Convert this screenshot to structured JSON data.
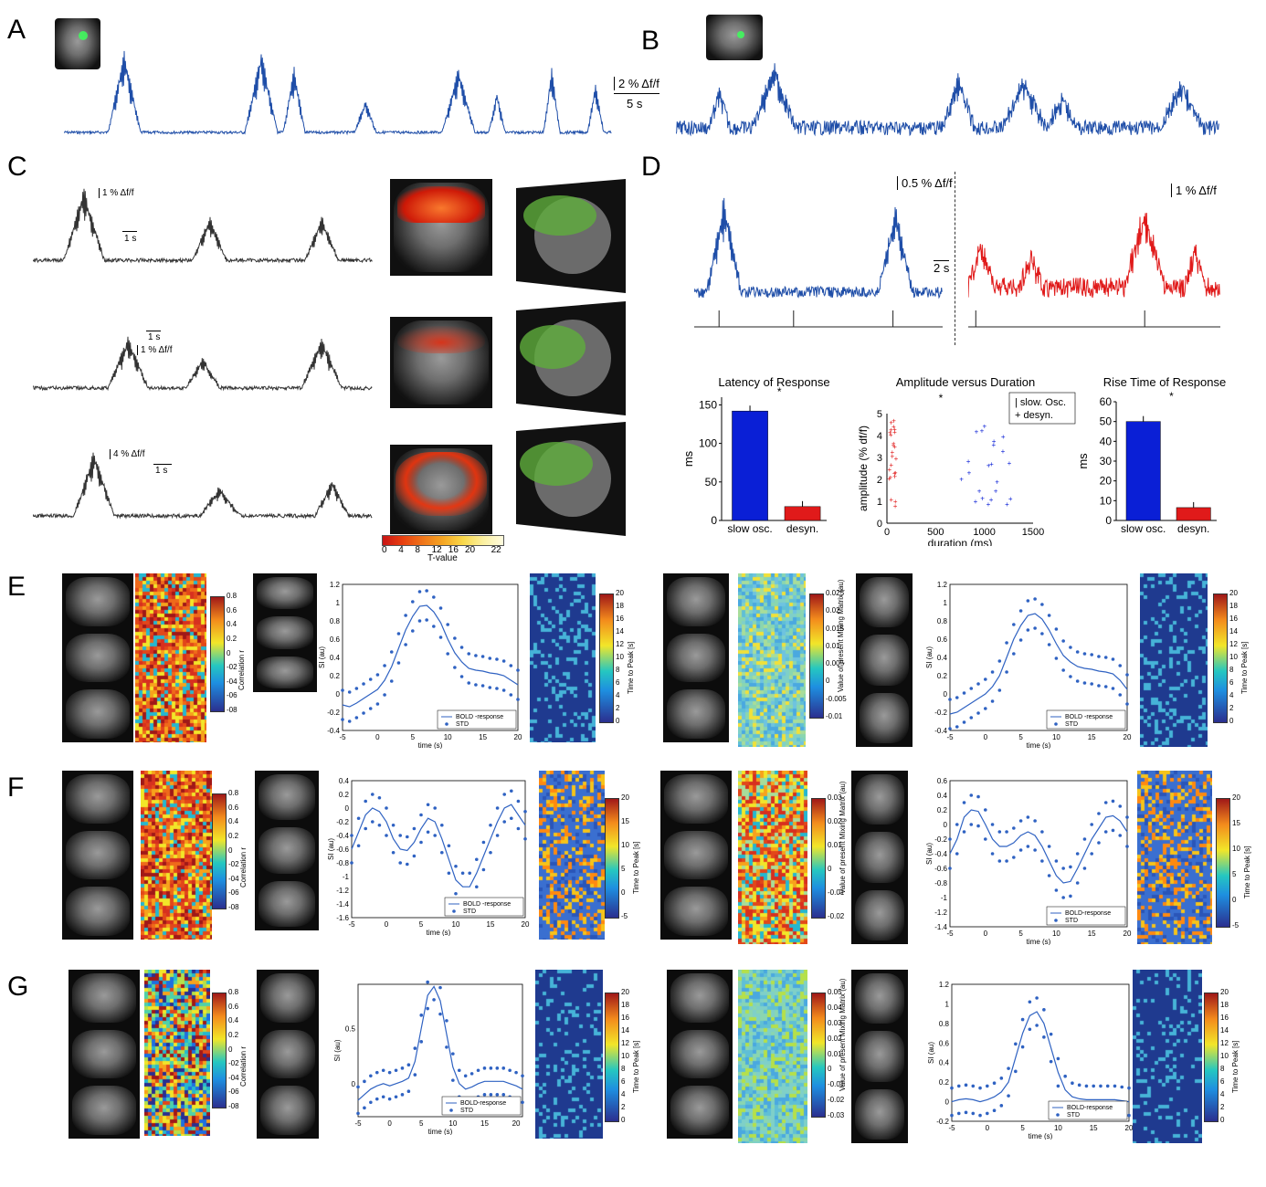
{
  "panels": {
    "A": "A",
    "B": "B",
    "C": "C",
    "D": "D",
    "E": "E",
    "F": "F",
    "G": "G"
  },
  "scalebars": {
    "a_amp": "2 % Δf/f",
    "a_time": "5 s",
    "c1_amp": "1 % Δf/f",
    "c1_time": "1 s",
    "c2_amp": "1 % Δf/f",
    "c2_time": "1 s",
    "c3_amp": "4 % Δf/f",
    "c3_time": "1 s",
    "d_amp1": "0.5 % Δf/f",
    "d_amp2": "1 % Δf/f",
    "d_time": "2 s"
  },
  "tmap": {
    "ticks": [
      "0",
      "4",
      "8",
      "12",
      "16",
      "20",
      "22"
    ],
    "label": "T-value"
  },
  "colors": {
    "blue": "#1f4ea8",
    "red": "#e01a1a",
    "black": "#333333",
    "bar_blue": "#0a1fd6"
  },
  "chart_data": [
    {
      "type": "bar",
      "title": "Latency of Response",
      "ylabel": "ms",
      "categories": [
        "slow osc.",
        "desyn."
      ],
      "values": [
        142,
        18
      ],
      "ylim": [
        0,
        160
      ],
      "yticks": [
        "0",
        "50",
        "100",
        "150"
      ],
      "sig": "*"
    },
    {
      "type": "scatter",
      "title": "Amplitude versus Duration",
      "xlabel": "duration (ms)",
      "ylabel": "amplitude (% df/f)",
      "xlim": [
        0,
        1500
      ],
      "ylim": [
        0,
        5
      ],
      "xticks": [
        "0",
        "500",
        "1000",
        "1500"
      ],
      "yticks": [
        "0",
        "1",
        "2",
        "3",
        "4",
        "5"
      ],
      "legend": [
        "slow. Osc.",
        "desyn."
      ],
      "sig": "*"
    },
    {
      "type": "bar",
      "title": "Rise Time of Response",
      "ylabel": "ms",
      "categories": [
        "slow osc.",
        "desyn."
      ],
      "values": [
        50,
        6.5
      ],
      "ylim": [
        0,
        60
      ],
      "yticks": [
        "0",
        "10",
        "20",
        "30",
        "40",
        "50",
        "60"
      ],
      "sig": "*"
    },
    {
      "type": "line",
      "id": "E1",
      "xlabel": "time (s)",
      "ylabel": "SI (au)",
      "xlim": [
        -5,
        20
      ],
      "ylim": [
        -0.4,
        1.2
      ],
      "xticks": [
        "-5",
        "0",
        "5",
        "10",
        "15",
        "20"
      ],
      "yticks": [
        "-0.4",
        "-0.2",
        "0",
        "0.2",
        "0.4",
        "0.6",
        "0.8",
        "1",
        "1.2"
      ],
      "legend": [
        "BOLD -response",
        "STD"
      ],
      "x": [
        -5,
        -4,
        -3,
        -2,
        -1,
        0,
        1,
        2,
        3,
        4,
        5,
        6,
        7,
        8,
        9,
        10,
        11,
        12,
        13,
        14,
        15,
        16,
        17,
        18,
        19,
        20
      ],
      "mean": [
        -0.12,
        -0.14,
        -0.1,
        -0.05,
        0.0,
        0.05,
        0.15,
        0.3,
        0.5,
        0.7,
        0.85,
        0.96,
        0.97,
        0.9,
        0.78,
        0.6,
        0.45,
        0.35,
        0.28,
        0.26,
        0.25,
        0.23,
        0.22,
        0.2,
        0.15,
        0.1
      ]
    },
    {
      "type": "line",
      "id": "E2",
      "xlabel": "time (s)",
      "ylabel": "SI (au)",
      "xlim": [
        -5,
        20
      ],
      "ylim": [
        -0.4,
        1.2
      ],
      "xticks": [
        "-5",
        "0",
        "5",
        "10",
        "15",
        "20"
      ],
      "yticks": [
        "-0.4",
        "-0.2",
        "0",
        "0.2",
        "0.4",
        "0.6",
        "0.8",
        "1",
        "1.2"
      ],
      "legend": [
        "BOLD -response",
        "STD"
      ],
      "x": [
        -5,
        -4,
        -3,
        -2,
        -1,
        0,
        1,
        2,
        3,
        4,
        5,
        6,
        7,
        8,
        9,
        10,
        11,
        12,
        13,
        14,
        15,
        16,
        17,
        18,
        19,
        20
      ],
      "mean": [
        -0.22,
        -0.2,
        -0.15,
        -0.1,
        -0.05,
        0.0,
        0.08,
        0.2,
        0.4,
        0.6,
        0.75,
        0.86,
        0.88,
        0.82,
        0.7,
        0.55,
        0.42,
        0.35,
        0.3,
        0.28,
        0.27,
        0.25,
        0.24,
        0.22,
        0.15,
        0.05
      ]
    },
    {
      "type": "line",
      "id": "F1",
      "xlabel": "time (s)",
      "ylabel": "SI (au)",
      "xlim": [
        -5,
        20
      ],
      "ylim": [
        -1.6,
        0.4
      ],
      "xticks": [
        "-5",
        "0",
        "5",
        "10",
        "15",
        "20"
      ],
      "yticks": [
        "-1.6",
        "-1.4",
        "-1.2",
        "-1",
        "-0.8",
        "-0.6",
        "-0.4",
        "-0.2",
        "0",
        "0.2",
        "0.4"
      ],
      "legend": [
        "BOLD -response",
        "STD"
      ],
      "x": [
        -5,
        -4,
        -3,
        -2,
        -1,
        0,
        1,
        2,
        3,
        4,
        5,
        6,
        7,
        8,
        9,
        10,
        11,
        12,
        13,
        14,
        15,
        16,
        17,
        18,
        19,
        20
      ],
      "mean": [
        -0.6,
        -0.35,
        -0.1,
        0.0,
        -0.05,
        -0.2,
        -0.45,
        -0.6,
        -0.62,
        -0.5,
        -0.3,
        -0.15,
        -0.2,
        -0.45,
        -0.75,
        -1.05,
        -1.15,
        -1.15,
        -0.95,
        -0.7,
        -0.45,
        -0.2,
        0.0,
        0.05,
        -0.1,
        -0.25
      ]
    },
    {
      "type": "line",
      "id": "F2",
      "xlabel": "time (s)",
      "ylabel": "SI (au)",
      "xlim": [
        -5,
        20
      ],
      "ylim": [
        -1.4,
        0.6
      ],
      "xticks": [
        "-5",
        "0",
        "5",
        "10",
        "15",
        "20"
      ],
      "yticks": [
        "-1.4",
        "-1.2",
        "-1",
        "-0.8",
        "-0.6",
        "-0.4",
        "-0.2",
        "0",
        "0.2",
        "0.4",
        "0.6"
      ],
      "legend": [
        "BOLD-response",
        "STD"
      ],
      "x": [
        -5,
        -4,
        -3,
        -2,
        -1,
        0,
        1,
        2,
        3,
        4,
        5,
        6,
        7,
        8,
        9,
        10,
        11,
        12,
        13,
        14,
        15,
        16,
        17,
        18,
        19,
        20
      ],
      "mean": [
        -0.4,
        -0.2,
        0.1,
        0.2,
        0.18,
        0.0,
        -0.2,
        -0.3,
        -0.3,
        -0.25,
        -0.15,
        -0.1,
        -0.15,
        -0.3,
        -0.5,
        -0.7,
        -0.8,
        -0.78,
        -0.6,
        -0.4,
        -0.2,
        -0.05,
        0.1,
        0.12,
        0.05,
        -0.1
      ]
    },
    {
      "type": "line",
      "id": "G1",
      "xlabel": "time (s)",
      "ylabel": "SI (au)",
      "xlim": [
        -5,
        21
      ],
      "ylim": [
        -0.3,
        0.9
      ],
      "xticks": [
        "-5",
        "0",
        "5",
        "10",
        "15",
        "20"
      ],
      "yticks": [
        "0",
        "0.5"
      ],
      "legend": [
        "BOLD-response",
        "STD"
      ],
      "x": [
        -5,
        -4,
        -3,
        -2,
        -1,
        0,
        1,
        2,
        3,
        4,
        5,
        6,
        7,
        8,
        9,
        10,
        11,
        12,
        13,
        14,
        15,
        16,
        17,
        18,
        19,
        20,
        21
      ],
      "mean": [
        -0.15,
        -0.1,
        -0.05,
        -0.02,
        0.0,
        -0.02,
        0.0,
        0.02,
        0.05,
        0.2,
        0.5,
        0.8,
        0.88,
        0.75,
        0.45,
        0.15,
        0.0,
        -0.05,
        -0.03,
        0.0,
        0.02,
        0.02,
        0.02,
        0.02,
        0.0,
        -0.02,
        -0.05
      ]
    },
    {
      "type": "line",
      "id": "G2",
      "xlabel": "time (s)",
      "ylabel": "SI (au)",
      "xlim": [
        -5,
        20
      ],
      "ylim": [
        -0.2,
        1.2
      ],
      "xticks": [
        "-5",
        "0",
        "5",
        "10",
        "15",
        "20"
      ],
      "yticks": [
        "-0.2",
        "0",
        "0.2",
        "0.4",
        "0.6",
        "0.8",
        "1",
        "1.2"
      ],
      "legend": [
        "BOLD-response",
        "STD"
      ],
      "x": [
        -5,
        -4,
        -3,
        -2,
        -1,
        0,
        1,
        2,
        3,
        4,
        5,
        6,
        7,
        8,
        9,
        10,
        11,
        12,
        13,
        14,
        15,
        16,
        17,
        18,
        19,
        20
      ],
      "mean": [
        0.0,
        0.02,
        0.03,
        0.02,
        0.0,
        0.02,
        0.05,
        0.1,
        0.2,
        0.45,
        0.7,
        0.88,
        0.92,
        0.8,
        0.55,
        0.3,
        0.12,
        0.05,
        0.03,
        0.02,
        0.02,
        0.02,
        0.02,
        0.02,
        0.01,
        0.0
      ]
    }
  ],
  "colorbars": {
    "corr": {
      "label": "Correlation r",
      "ticks": [
        "0.8",
        "0.6",
        "0.4",
        "0.2",
        "0",
        "-02",
        "-04",
        "-06",
        "-08"
      ]
    },
    "corr_f": {
      "label": "Correlation r",
      "ticks": [
        "0.8",
        "0.6",
        "0.4",
        "0.2",
        "0",
        "-02",
        "-04",
        "-06",
        "-08"
      ]
    },
    "corr_g": {
      "label": "Correlation r",
      "ticks": [
        "0.8",
        "0.6",
        "0.4",
        "0.2",
        "0",
        "-02",
        "-04",
        "-06",
        "-08"
      ]
    },
    "ttp_e": {
      "label": "Time to Peak [s]",
      "ticks": [
        "20",
        "18",
        "16",
        "14",
        "12",
        "10",
        "8",
        "6",
        "4",
        "2",
        "0"
      ]
    },
    "ttp_f": {
      "label": "Time to Peak [s]",
      "ticks": [
        "20",
        "15",
        "10",
        "5",
        "0",
        "-5"
      ]
    },
    "ttp_g": {
      "label": "Time to Peak [s]",
      "ticks": [
        "20",
        "18",
        "16",
        "14",
        "12",
        "10",
        "8",
        "6",
        "4",
        "2",
        "0"
      ]
    },
    "mix_e": {
      "label": "Value of present Mixing Matrix (au)",
      "ticks": [
        "0.025",
        "0.02",
        "0.015",
        "0.01",
        "0.005",
        "0",
        "-0.005",
        "-0.01"
      ]
    },
    "mix_f": {
      "label": "Value of present Mixing Matrix (au)",
      "ticks": [
        "0.03",
        "0.02",
        "0.01",
        "0",
        "-0.01",
        "-0.02"
      ]
    },
    "mix_g": {
      "label": "Value of present Mixing Matrix (au)",
      "ticks": [
        "0.05",
        "0.04",
        "0.03",
        "0.02",
        "0.01",
        "0",
        "-0.01",
        "-0.02",
        "-0.03"
      ]
    }
  }
}
